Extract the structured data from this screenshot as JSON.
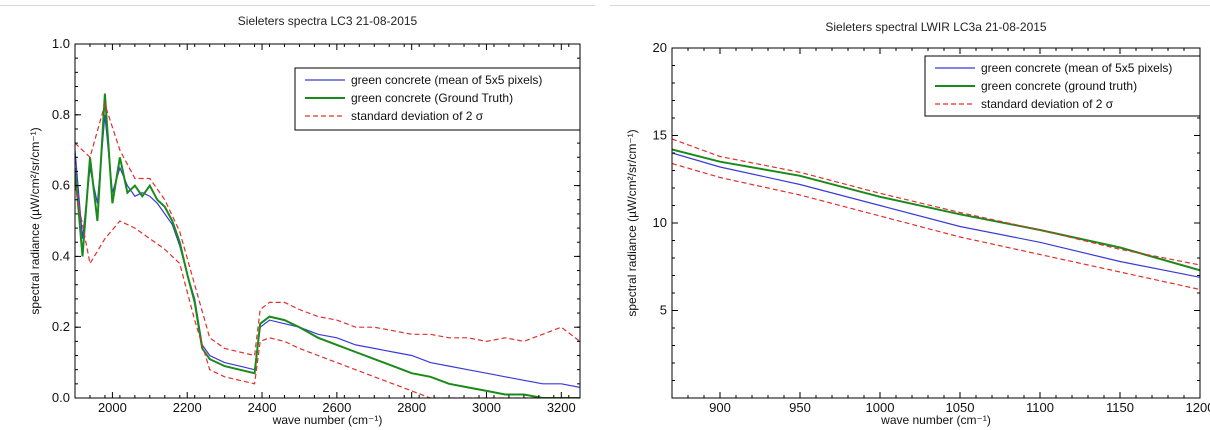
{
  "chart_data": [
    {
      "type": "line",
      "title": "Sieleters spectra LC3 21-08-2015",
      "xlabel": "wave number (cm⁻¹)",
      "ylabel": "spectral radiance (µW/cm²/sr/cm⁻¹)",
      "xlim": [
        1900,
        3250
      ],
      "ylim": [
        0.0,
        1.0
      ],
      "x_ticks": [
        2000,
        2200,
        2400,
        2600,
        2800,
        3000,
        3200
      ],
      "x_tick_labels": [
        "2000",
        "2200",
        "2400",
        "2600",
        "2800",
        "3000",
        "3200"
      ],
      "y_ticks": [
        0.0,
        0.2,
        0.4,
        0.6,
        0.8,
        1.0
      ],
      "y_tick_labels": [
        "0.0",
        "0.2",
        "0.4",
        "0.6",
        "0.8",
        "1.0"
      ],
      "grid": false,
      "legend_position": "top-right",
      "series": [
        {
          "name": "green concrete (mean of 5x5 pixels)",
          "color": "#3b3bd6",
          "style": "solid",
          "x": [
            1900,
            1920,
            1940,
            1960,
            1980,
            2000,
            2020,
            2040,
            2060,
            2080,
            2100,
            2120,
            2140,
            2160,
            2180,
            2200,
            2220,
            2240,
            2260,
            2300,
            2340,
            2380,
            2395,
            2420,
            2460,
            2500,
            2550,
            2600,
            2650,
            2700,
            2750,
            2800,
            2850,
            2900,
            2950,
            3000,
            3050,
            3100,
            3150,
            3200,
            3250
          ],
          "y": [
            0.7,
            0.45,
            0.65,
            0.55,
            0.8,
            0.58,
            0.65,
            0.6,
            0.57,
            0.58,
            0.57,
            0.55,
            0.52,
            0.49,
            0.43,
            0.35,
            0.28,
            0.15,
            0.12,
            0.1,
            0.09,
            0.08,
            0.2,
            0.22,
            0.21,
            0.2,
            0.18,
            0.17,
            0.15,
            0.14,
            0.13,
            0.12,
            0.1,
            0.09,
            0.08,
            0.07,
            0.06,
            0.05,
            0.04,
            0.04,
            0.03
          ]
        },
        {
          "name": "green concrete (Ground Truth)",
          "color": "#1a8a1a",
          "style": "solid",
          "x": [
            1900,
            1920,
            1940,
            1960,
            1980,
            2000,
            2020,
            2040,
            2060,
            2080,
            2100,
            2120,
            2140,
            2160,
            2180,
            2200,
            2220,
            2240,
            2260,
            2300,
            2340,
            2380,
            2395,
            2420,
            2460,
            2500,
            2550,
            2600,
            2650,
            2700,
            2750,
            2800,
            2850,
            2900,
            2950,
            3000,
            3050,
            3100,
            3150,
            3200,
            3250
          ],
          "y": [
            0.65,
            0.4,
            0.68,
            0.5,
            0.86,
            0.55,
            0.68,
            0.58,
            0.6,
            0.57,
            0.6,
            0.56,
            0.54,
            0.5,
            0.44,
            0.35,
            0.27,
            0.14,
            0.11,
            0.09,
            0.08,
            0.07,
            0.21,
            0.23,
            0.22,
            0.2,
            0.17,
            0.15,
            0.13,
            0.11,
            0.09,
            0.07,
            0.06,
            0.04,
            0.03,
            0.02,
            0.01,
            0.01,
            0.0,
            0.0,
            0.0
          ]
        },
        {
          "name": "standard deviation of 2 σ",
          "color": "#e03030",
          "style": "dashed",
          "x": [
            1900,
            1940,
            1980,
            2020,
            2060,
            2100,
            2140,
            2180,
            2220,
            2260,
            2300,
            2340,
            2380,
            2395,
            2420,
            2460,
            2500,
            2550,
            2600,
            2650,
            2700,
            2750,
            2800,
            2850,
            2900,
            2950,
            3000,
            3050,
            3100,
            3150,
            3200,
            3250
          ],
          "y": [
            0.72,
            0.68,
            0.83,
            0.7,
            0.62,
            0.62,
            0.56,
            0.47,
            0.32,
            0.17,
            0.14,
            0.13,
            0.12,
            0.25,
            0.27,
            0.27,
            0.25,
            0.23,
            0.22,
            0.2,
            0.2,
            0.19,
            0.18,
            0.18,
            0.17,
            0.17,
            0.16,
            0.17,
            0.16,
            0.18,
            0.2,
            0.16
          ]
        },
        {
          "name": "",
          "color": "#e03030",
          "style": "dashed",
          "x": [
            1900,
            1940,
            1980,
            2020,
            2060,
            2100,
            2140,
            2180,
            2220,
            2260,
            2300,
            2340,
            2380,
            2395,
            2420,
            2460,
            2500,
            2550,
            2600,
            2650,
            2700,
            2750,
            2800,
            2850,
            2900,
            2950,
            3000,
            3050,
            3100,
            3150,
            3200,
            3250
          ],
          "y": [
            0.6,
            0.38,
            0.45,
            0.5,
            0.48,
            0.45,
            0.42,
            0.38,
            0.22,
            0.08,
            0.06,
            0.05,
            0.04,
            0.16,
            0.17,
            0.16,
            0.14,
            0.12,
            0.1,
            0.08,
            0.06,
            0.04,
            0.02,
            0.0,
            0.0,
            0.0,
            0.0,
            0.0,
            0.0,
            0.0,
            0.0,
            0.0
          ]
        }
      ]
    },
    {
      "type": "line",
      "title": "Sieleters spectral LWIR LC3a 21-08-2015",
      "xlabel": "wave number (cm⁻¹)",
      "ylabel": "spectral radiance (µW/cm²/sr/cm⁻¹)",
      "xlim": [
        870,
        1200
      ],
      "ylim": [
        0,
        20
      ],
      "x_ticks": [
        900,
        950,
        1000,
        1050,
        1100,
        1150,
        1200
      ],
      "x_tick_labels": [
        "900",
        "950",
        "1000",
        "1050",
        "1100",
        "1150",
        "1200"
      ],
      "y_ticks": [
        5,
        10,
        15,
        20
      ],
      "y_tick_labels": [
        "5",
        "10",
        "15",
        "20"
      ],
      "grid": false,
      "legend_position": "top-right",
      "series": [
        {
          "name": "green concrete (mean of 5x5 pixels)",
          "color": "#3b3bd6",
          "style": "solid",
          "x": [
            870,
            900,
            950,
            1000,
            1050,
            1100,
            1150,
            1200
          ],
          "y": [
            14.0,
            13.2,
            12.2,
            11.0,
            9.8,
            8.9,
            7.8,
            6.9
          ]
        },
        {
          "name": "green concrete (ground truth)",
          "color": "#1a8a1a",
          "style": "solid",
          "x": [
            870,
            900,
            950,
            1000,
            1050,
            1100,
            1150,
            1200
          ],
          "y": [
            14.2,
            13.5,
            12.7,
            11.5,
            10.5,
            9.6,
            8.6,
            7.3
          ]
        },
        {
          "name": "standard deviation of 2 σ",
          "color": "#e03030",
          "style": "dashed",
          "x": [
            870,
            900,
            950,
            1000,
            1050,
            1100,
            1150,
            1200
          ],
          "y": [
            14.8,
            13.8,
            12.9,
            11.7,
            10.6,
            9.6,
            8.5,
            7.6
          ]
        },
        {
          "name": "",
          "color": "#e03030",
          "style": "dashed",
          "x": [
            870,
            900,
            950,
            1000,
            1050,
            1100,
            1150,
            1200
          ],
          "y": [
            13.4,
            12.6,
            11.6,
            10.4,
            9.2,
            8.2,
            7.2,
            6.2
          ]
        }
      ]
    }
  ]
}
